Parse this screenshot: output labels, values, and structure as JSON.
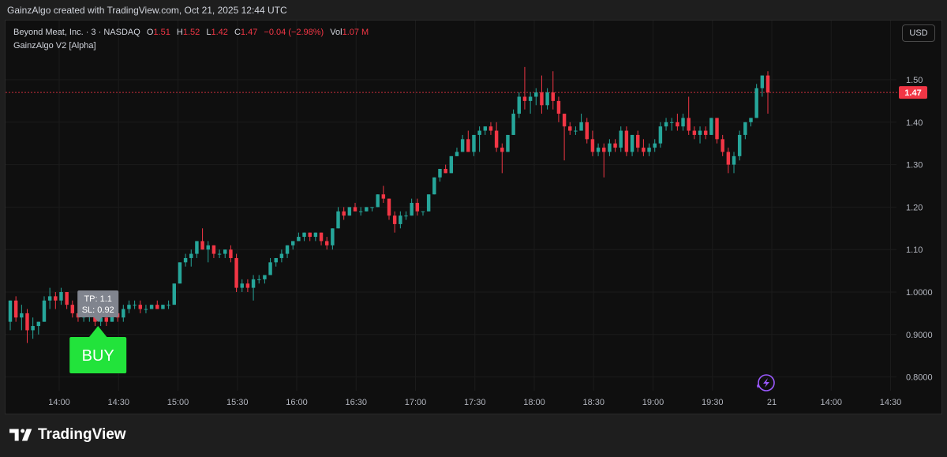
{
  "caption": "GainzAlgo created with TradingView.com, Oct 21, 2025 12:44 UTC",
  "legend": {
    "symbol": "Beyond Meat, Inc. · 3 · NASDAQ",
    "o_label": "O",
    "o_value": "1.51",
    "h_label": "H",
    "h_value": "1.52",
    "l_label": "L",
    "l_value": "1.42",
    "c_label": "C",
    "c_value": "1.47",
    "change": "−0.04 (−2.98%)",
    "vol_label": "Vol",
    "vol_value": "1.07 M",
    "indicator": "GainzAlgo V2 [Alpha]"
  },
  "currency_button": "USD",
  "footer_brand": "TradingView",
  "colors": {
    "up": "#26a69a",
    "down": "#f23645",
    "buy": "#22e33b",
    "price_line": "#f23645",
    "tooltip": "#80848e"
  },
  "signal": {
    "label": "BUY",
    "tp": "TP: 1.1",
    "sl": "SL: 0.92",
    "x": 14.4
  },
  "lightning_icon": "lightning-icon",
  "chart_data": {
    "type": "candlestick",
    "title": "",
    "x_ticks": [
      {
        "x": 14.0,
        "label": "14:00"
      },
      {
        "x": 14.5,
        "label": "14:30"
      },
      {
        "x": 15.0,
        "label": "15:00"
      },
      {
        "x": 15.5,
        "label": "15:30"
      },
      {
        "x": 16.0,
        "label": "16:00"
      },
      {
        "x": 16.5,
        "label": "16:30"
      },
      {
        "x": 17.0,
        "label": "17:00"
      },
      {
        "x": 17.5,
        "label": "17:30"
      },
      {
        "x": 18.0,
        "label": "18:00"
      },
      {
        "x": 18.5,
        "label": "18:30"
      },
      {
        "x": 19.0,
        "label": "19:00"
      },
      {
        "x": 19.5,
        "label": "19:30"
      },
      {
        "x": 20.0,
        "label": "21"
      },
      {
        "x": 20.5,
        "label": "14:00"
      },
      {
        "x": 21.0,
        "label": "14:30"
      }
    ],
    "y_ticks": [
      {
        "y": 1.5,
        "label": "1.50"
      },
      {
        "y": 1.4,
        "label": "1.40"
      },
      {
        "y": 1.3,
        "label": "1.30"
      },
      {
        "y": 1.2,
        "label": "1.20"
      },
      {
        "y": 1.1,
        "label": "1.10"
      },
      {
        "y": 1.0,
        "label": "1.0000"
      },
      {
        "y": 0.9,
        "label": "0.9000"
      },
      {
        "y": 0.8,
        "label": "0.8000"
      }
    ],
    "last_price": 1.47,
    "last_price_label": "1.47",
    "candles": [
      {
        "o": 0.93,
        "h": 0.98,
        "l": 0.91,
        "c": 0.98
      },
      {
        "o": 0.98,
        "h": 0.99,
        "l": 0.93,
        "c": 0.94
      },
      {
        "o": 0.94,
        "h": 0.97,
        "l": 0.91,
        "c": 0.95
      },
      {
        "o": 0.95,
        "h": 0.96,
        "l": 0.88,
        "c": 0.91
      },
      {
        "o": 0.91,
        "h": 0.94,
        "l": 0.89,
        "c": 0.92
      },
      {
        "o": 0.92,
        "h": 0.93,
        "l": 0.9,
        "c": 0.93
      },
      {
        "o": 0.93,
        "h": 0.99,
        "l": 0.93,
        "c": 0.98
      },
      {
        "o": 0.98,
        "h": 1.01,
        "l": 0.96,
        "c": 0.99
      },
      {
        "o": 0.99,
        "h": 1.0,
        "l": 0.96,
        "c": 0.98
      },
      {
        "o": 0.98,
        "h": 1.01,
        "l": 0.97,
        "c": 1.0
      },
      {
        "o": 1.0,
        "h": 1.0,
        "l": 0.96,
        "c": 0.97
      },
      {
        "o": 0.97,
        "h": 0.98,
        "l": 0.94,
        "c": 0.95
      },
      {
        "o": 0.95,
        "h": 0.96,
        "l": 0.93,
        "c": 0.94
      },
      {
        "o": 0.94,
        "h": 0.96,
        "l": 0.93,
        "c": 0.95
      },
      {
        "o": 0.95,
        "h": 0.96,
        "l": 0.93,
        "c": 0.95
      },
      {
        "o": 0.95,
        "h": 0.96,
        "l": 0.92,
        "c": 0.93
      },
      {
        "o": 0.93,
        "h": 0.95,
        "l": 0.92,
        "c": 0.94
      },
      {
        "o": 0.94,
        "h": 0.95,
        "l": 0.92,
        "c": 0.93
      },
      {
        "o": 0.93,
        "h": 0.96,
        "l": 0.93,
        "c": 0.95
      },
      {
        "o": 0.95,
        "h": 0.97,
        "l": 0.93,
        "c": 0.94
      },
      {
        "o": 0.94,
        "h": 0.97,
        "l": 0.93,
        "c": 0.96
      },
      {
        "o": 0.96,
        "h": 0.98,
        "l": 0.95,
        "c": 0.97
      },
      {
        "o": 0.97,
        "h": 0.98,
        "l": 0.96,
        "c": 0.97
      },
      {
        "o": 0.97,
        "h": 0.98,
        "l": 0.95,
        "c": 0.96
      },
      {
        "o": 0.96,
        "h": 0.97,
        "l": 0.95,
        "c": 0.96
      },
      {
        "o": 0.96,
        "h": 0.97,
        "l": 0.96,
        "c": 0.97
      },
      {
        "o": 0.97,
        "h": 0.98,
        "l": 0.96,
        "c": 0.96
      },
      {
        "o": 0.96,
        "h": 0.97,
        "l": 0.96,
        "c": 0.97
      },
      {
        "o": 0.97,
        "h": 0.98,
        "l": 0.96,
        "c": 0.97
      },
      {
        "o": 0.97,
        "h": 1.02,
        "l": 0.97,
        "c": 1.02
      },
      {
        "o": 1.02,
        "h": 1.07,
        "l": 1.02,
        "c": 1.07
      },
      {
        "o": 1.07,
        "h": 1.09,
        "l": 1.06,
        "c": 1.08
      },
      {
        "o": 1.08,
        "h": 1.1,
        "l": 1.06,
        "c": 1.09
      },
      {
        "o": 1.09,
        "h": 1.12,
        "l": 1.08,
        "c": 1.12
      },
      {
        "o": 1.12,
        "h": 1.15,
        "l": 1.1,
        "c": 1.1
      },
      {
        "o": 1.1,
        "h": 1.12,
        "l": 1.07,
        "c": 1.11
      },
      {
        "o": 1.11,
        "h": 1.11,
        "l": 1.08,
        "c": 1.09
      },
      {
        "o": 1.09,
        "h": 1.1,
        "l": 1.08,
        "c": 1.09
      },
      {
        "o": 1.09,
        "h": 1.1,
        "l": 1.08,
        "c": 1.1
      },
      {
        "o": 1.1,
        "h": 1.11,
        "l": 1.07,
        "c": 1.08
      },
      {
        "o": 1.08,
        "h": 1.09,
        "l": 1.0,
        "c": 1.01
      },
      {
        "o": 1.01,
        "h": 1.03,
        "l": 1.0,
        "c": 1.02
      },
      {
        "o": 1.02,
        "h": 1.03,
        "l": 1.0,
        "c": 1.01
      },
      {
        "o": 1.01,
        "h": 1.04,
        "l": 0.98,
        "c": 1.03
      },
      {
        "o": 1.03,
        "h": 1.04,
        "l": 1.02,
        "c": 1.03
      },
      {
        "o": 1.03,
        "h": 1.04,
        "l": 1.02,
        "c": 1.04
      },
      {
        "o": 1.04,
        "h": 1.08,
        "l": 1.04,
        "c": 1.07
      },
      {
        "o": 1.07,
        "h": 1.08,
        "l": 1.06,
        "c": 1.08
      },
      {
        "o": 1.08,
        "h": 1.1,
        "l": 1.07,
        "c": 1.09
      },
      {
        "o": 1.09,
        "h": 1.11,
        "l": 1.08,
        "c": 1.11
      },
      {
        "o": 1.11,
        "h": 1.12,
        "l": 1.1,
        "c": 1.12
      },
      {
        "o": 1.12,
        "h": 1.14,
        "l": 1.12,
        "c": 1.13
      },
      {
        "o": 1.13,
        "h": 1.14,
        "l": 1.12,
        "c": 1.14
      },
      {
        "o": 1.14,
        "h": 1.14,
        "l": 1.12,
        "c": 1.13
      },
      {
        "o": 1.13,
        "h": 1.14,
        "l": 1.12,
        "c": 1.14
      },
      {
        "o": 1.14,
        "h": 1.14,
        "l": 1.11,
        "c": 1.12
      },
      {
        "o": 1.12,
        "h": 1.13,
        "l": 1.1,
        "c": 1.11
      },
      {
        "o": 1.11,
        "h": 1.15,
        "l": 1.1,
        "c": 1.15
      },
      {
        "o": 1.15,
        "h": 1.2,
        "l": 1.15,
        "c": 1.19
      },
      {
        "o": 1.19,
        "h": 1.2,
        "l": 1.17,
        "c": 1.18
      },
      {
        "o": 1.18,
        "h": 1.2,
        "l": 1.18,
        "c": 1.2
      },
      {
        "o": 1.2,
        "h": 1.21,
        "l": 1.19,
        "c": 1.19
      },
      {
        "o": 1.19,
        "h": 1.2,
        "l": 1.18,
        "c": 1.19
      },
      {
        "o": 1.19,
        "h": 1.2,
        "l": 1.19,
        "c": 1.2
      },
      {
        "o": 1.2,
        "h": 1.2,
        "l": 1.19,
        "c": 1.2
      },
      {
        "o": 1.2,
        "h": 1.23,
        "l": 1.2,
        "c": 1.23
      },
      {
        "o": 1.23,
        "h": 1.25,
        "l": 1.21,
        "c": 1.22
      },
      {
        "o": 1.22,
        "h": 1.22,
        "l": 1.17,
        "c": 1.18
      },
      {
        "o": 1.18,
        "h": 1.19,
        "l": 1.14,
        "c": 1.16
      },
      {
        "o": 1.16,
        "h": 1.19,
        "l": 1.15,
        "c": 1.18
      },
      {
        "o": 1.18,
        "h": 1.19,
        "l": 1.17,
        "c": 1.18
      },
      {
        "o": 1.18,
        "h": 1.22,
        "l": 1.18,
        "c": 1.21
      },
      {
        "o": 1.21,
        "h": 1.22,
        "l": 1.18,
        "c": 1.19
      },
      {
        "o": 1.19,
        "h": 1.19,
        "l": 1.18,
        "c": 1.19
      },
      {
        "o": 1.19,
        "h": 1.23,
        "l": 1.19,
        "c": 1.23
      },
      {
        "o": 1.23,
        "h": 1.27,
        "l": 1.23,
        "c": 1.27
      },
      {
        "o": 1.27,
        "h": 1.29,
        "l": 1.26,
        "c": 1.29
      },
      {
        "o": 1.29,
        "h": 1.3,
        "l": 1.28,
        "c": 1.28
      },
      {
        "o": 1.28,
        "h": 1.32,
        "l": 1.28,
        "c": 1.32
      },
      {
        "o": 1.32,
        "h": 1.34,
        "l": 1.32,
        "c": 1.33
      },
      {
        "o": 1.33,
        "h": 1.37,
        "l": 1.33,
        "c": 1.36
      },
      {
        "o": 1.36,
        "h": 1.38,
        "l": 1.33,
        "c": 1.33
      },
      {
        "o": 1.33,
        "h": 1.37,
        "l": 1.32,
        "c": 1.37
      },
      {
        "o": 1.37,
        "h": 1.39,
        "l": 1.33,
        "c": 1.38
      },
      {
        "o": 1.38,
        "h": 1.39,
        "l": 1.37,
        "c": 1.39
      },
      {
        "o": 1.39,
        "h": 1.4,
        "l": 1.37,
        "c": 1.38
      },
      {
        "o": 1.38,
        "h": 1.4,
        "l": 1.33,
        "c": 1.34
      },
      {
        "o": 1.34,
        "h": 1.35,
        "l": 1.28,
        "c": 1.33
      },
      {
        "o": 1.33,
        "h": 1.37,
        "l": 1.33,
        "c": 1.37
      },
      {
        "o": 1.37,
        "h": 1.43,
        "l": 1.37,
        "c": 1.42
      },
      {
        "o": 1.42,
        "h": 1.47,
        "l": 1.41,
        "c": 1.46
      },
      {
        "o": 1.46,
        "h": 1.53,
        "l": 1.43,
        "c": 1.45
      },
      {
        "o": 1.45,
        "h": 1.47,
        "l": 1.42,
        "c": 1.46
      },
      {
        "o": 1.46,
        "h": 1.48,
        "l": 1.44,
        "c": 1.47
      },
      {
        "o": 1.47,
        "h": 1.51,
        "l": 1.42,
        "c": 1.44
      },
      {
        "o": 1.44,
        "h": 1.48,
        "l": 1.43,
        "c": 1.47
      },
      {
        "o": 1.47,
        "h": 1.52,
        "l": 1.43,
        "c": 1.45
      },
      {
        "o": 1.45,
        "h": 1.46,
        "l": 1.4,
        "c": 1.42
      },
      {
        "o": 1.42,
        "h": 1.42,
        "l": 1.31,
        "c": 1.39
      },
      {
        "o": 1.39,
        "h": 1.4,
        "l": 1.37,
        "c": 1.38
      },
      {
        "o": 1.38,
        "h": 1.39,
        "l": 1.37,
        "c": 1.38
      },
      {
        "o": 1.38,
        "h": 1.42,
        "l": 1.38,
        "c": 1.4
      },
      {
        "o": 1.4,
        "h": 1.41,
        "l": 1.35,
        "c": 1.36
      },
      {
        "o": 1.36,
        "h": 1.38,
        "l": 1.32,
        "c": 1.33
      },
      {
        "o": 1.33,
        "h": 1.35,
        "l": 1.32,
        "c": 1.34
      },
      {
        "o": 1.34,
        "h": 1.35,
        "l": 1.27,
        "c": 1.33
      },
      {
        "o": 1.33,
        "h": 1.36,
        "l": 1.32,
        "c": 1.35
      },
      {
        "o": 1.35,
        "h": 1.36,
        "l": 1.33,
        "c": 1.34
      },
      {
        "o": 1.34,
        "h": 1.39,
        "l": 1.33,
        "c": 1.38
      },
      {
        "o": 1.38,
        "h": 1.39,
        "l": 1.32,
        "c": 1.33
      },
      {
        "o": 1.33,
        "h": 1.37,
        "l": 1.32,
        "c": 1.37
      },
      {
        "o": 1.37,
        "h": 1.38,
        "l": 1.33,
        "c": 1.34
      },
      {
        "o": 1.34,
        "h": 1.36,
        "l": 1.32,
        "c": 1.33
      },
      {
        "o": 1.33,
        "h": 1.35,
        "l": 1.32,
        "c": 1.34
      },
      {
        "o": 1.34,
        "h": 1.36,
        "l": 1.33,
        "c": 1.35
      },
      {
        "o": 1.35,
        "h": 1.4,
        "l": 1.34,
        "c": 1.39
      },
      {
        "o": 1.39,
        "h": 1.41,
        "l": 1.38,
        "c": 1.4
      },
      {
        "o": 1.4,
        "h": 1.41,
        "l": 1.38,
        "c": 1.4
      },
      {
        "o": 1.4,
        "h": 1.42,
        "l": 1.38,
        "c": 1.39
      },
      {
        "o": 1.39,
        "h": 1.42,
        "l": 1.38,
        "c": 1.41
      },
      {
        "o": 1.41,
        "h": 1.46,
        "l": 1.37,
        "c": 1.38
      },
      {
        "o": 1.38,
        "h": 1.39,
        "l": 1.36,
        "c": 1.37
      },
      {
        "o": 1.37,
        "h": 1.39,
        "l": 1.35,
        "c": 1.38
      },
      {
        "o": 1.38,
        "h": 1.39,
        "l": 1.36,
        "c": 1.37
      },
      {
        "o": 1.37,
        "h": 1.41,
        "l": 1.37,
        "c": 1.41
      },
      {
        "o": 1.41,
        "h": 1.41,
        "l": 1.35,
        "c": 1.36
      },
      {
        "o": 1.36,
        "h": 1.37,
        "l": 1.32,
        "c": 1.33
      },
      {
        "o": 1.33,
        "h": 1.34,
        "l": 1.28,
        "c": 1.3
      },
      {
        "o": 1.3,
        "h": 1.33,
        "l": 1.28,
        "c": 1.32
      },
      {
        "o": 1.32,
        "h": 1.38,
        "l": 1.31,
        "c": 1.37
      },
      {
        "o": 1.37,
        "h": 1.4,
        "l": 1.36,
        "c": 1.4
      },
      {
        "o": 1.4,
        "h": 1.41,
        "l": 1.39,
        "c": 1.41
      },
      {
        "o": 1.41,
        "h": 1.49,
        "l": 1.41,
        "c": 1.48
      },
      {
        "o": 1.48,
        "h": 1.51,
        "l": 1.46,
        "c": 1.51
      },
      {
        "o": 1.51,
        "h": 1.52,
        "l": 1.42,
        "c": 1.47
      }
    ]
  }
}
